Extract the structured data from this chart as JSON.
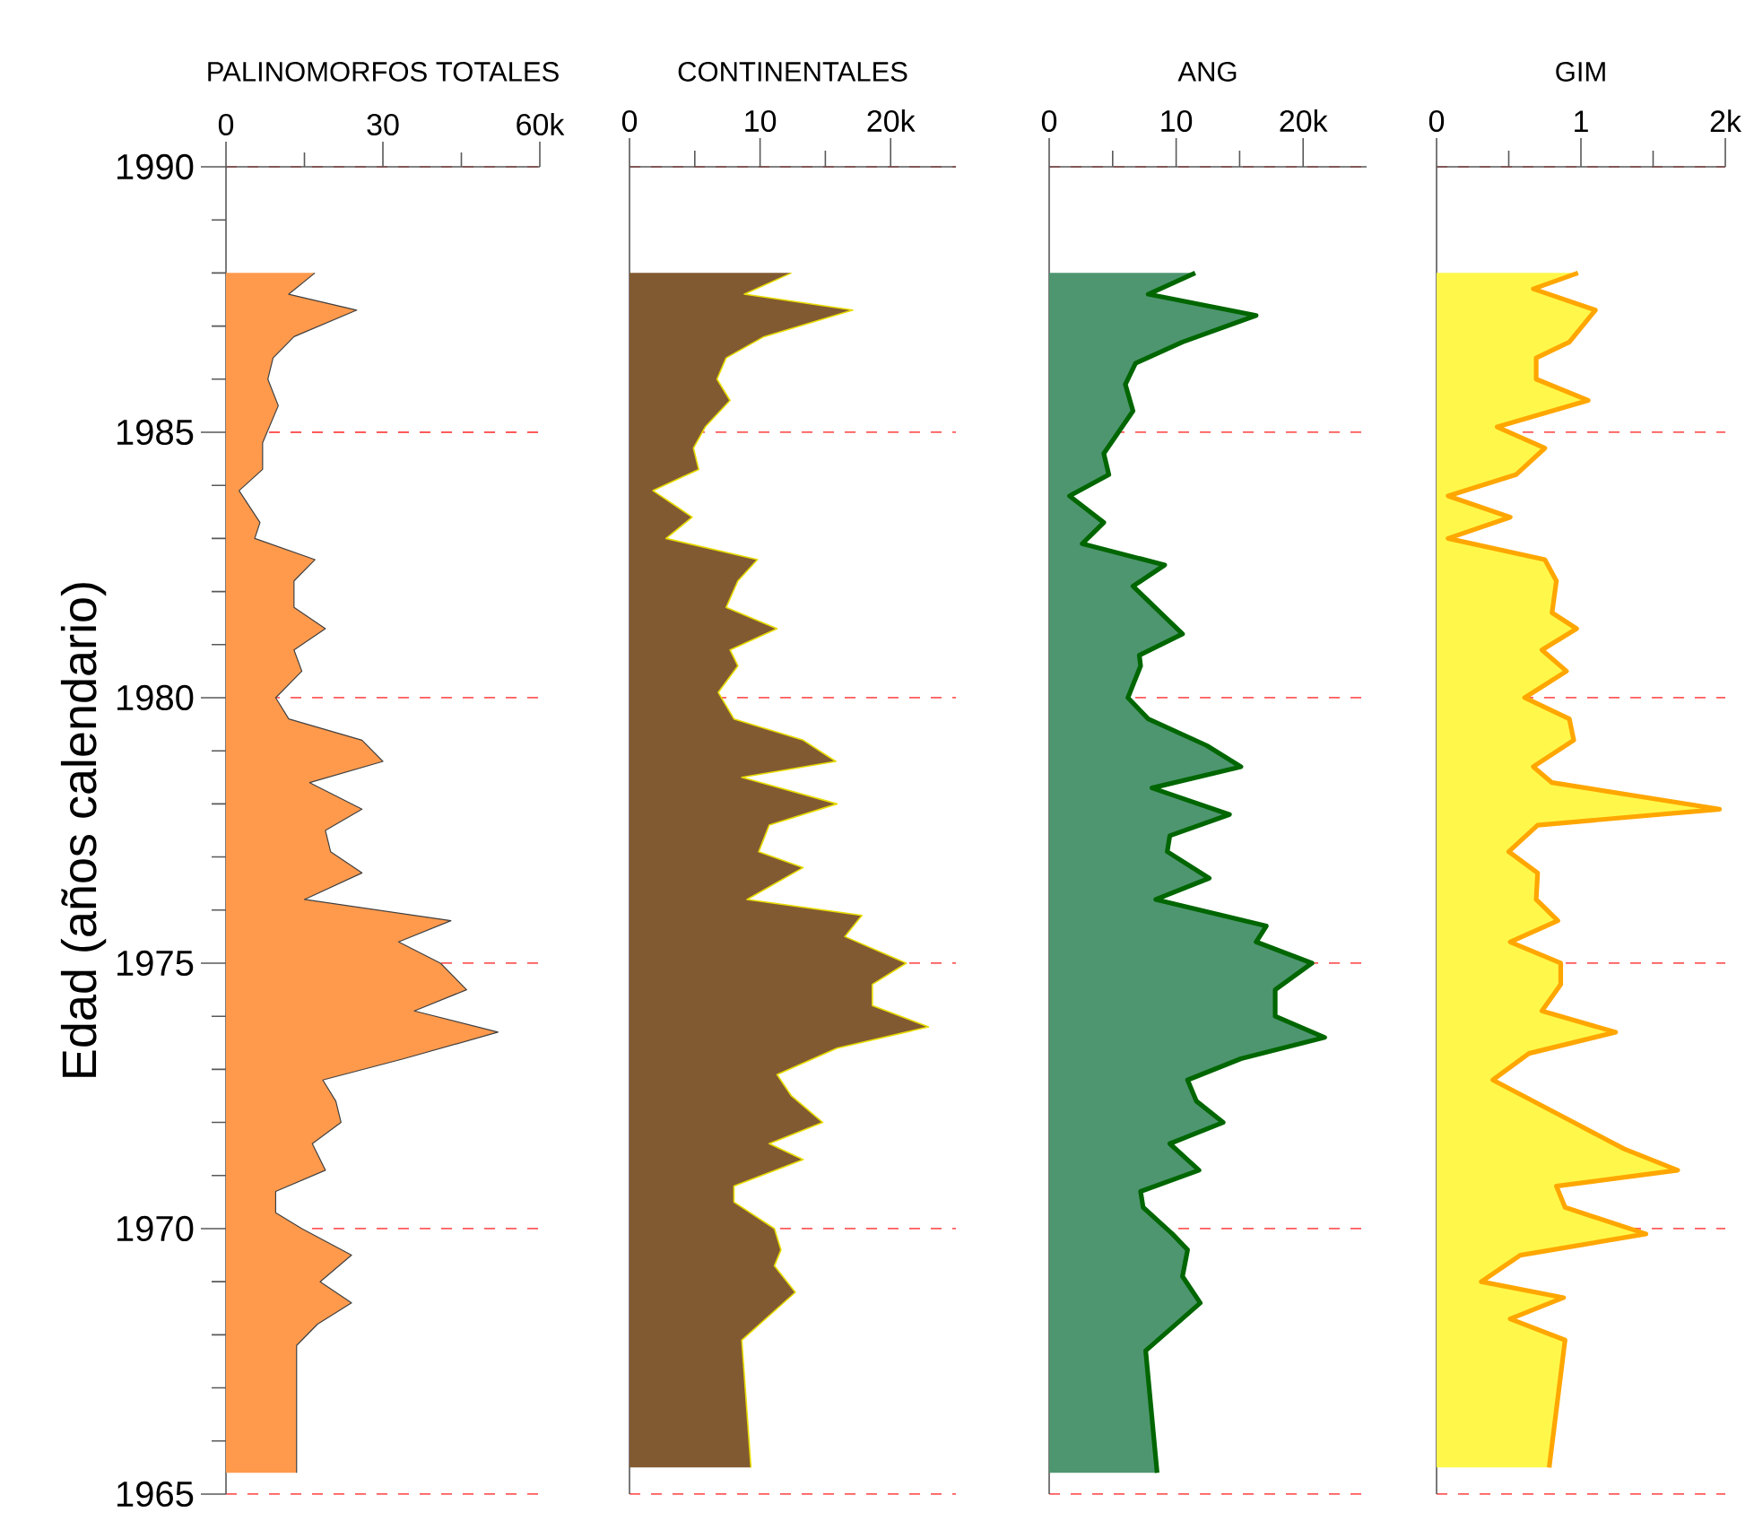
{
  "chart_data": [
    {
      "type": "area",
      "orientation": "horizontal",
      "title": "PALINOMORFOS TOTALES",
      "ylabel": "Edad (años calendario)",
      "color": "#ff9a4d",
      "grid": "y",
      "x": [
        1988.0,
        1987.6,
        1987.3,
        1986.8,
        1986.4,
        1986.0,
        1985.5,
        1984.8,
        1984.3,
        1983.9,
        1983.3,
        1983.0,
        1982.6,
        1982.2,
        1981.7,
        1981.3,
        1980.9,
        1980.5,
        1980.0,
        1979.6,
        1979.2,
        1978.8,
        1978.4,
        1977.9,
        1977.5,
        1977.1,
        1976.7,
        1976.2,
        1975.8,
        1975.4,
        1975.0,
        1974.5,
        1974.1,
        1973.7,
        1973.2,
        1972.8,
        1972.4,
        1972.0,
        1971.6,
        1971.1,
        1970.7,
        1970.3,
        1970.0,
        1969.5,
        1969.0,
        1968.6,
        1968.2,
        1967.8,
        1965.4
      ],
      "values": [
        17,
        12,
        25,
        13,
        9,
        8,
        10,
        7,
        7,
        2.5,
        6.5,
        5.5,
        17,
        13,
        13,
        19,
        13,
        14.5,
        9.5,
        12,
        26,
        30,
        16,
        26,
        19,
        20,
        26,
        15,
        43,
        33,
        41,
        46,
        36,
        52,
        34,
        18.5,
        21,
        22,
        16.5,
        19,
        9.5,
        9.5,
        14.5,
        24,
        18,
        24,
        17.5,
        13.5,
        13.5
      ],
      "xlim": [
        0,
        60
      ],
      "xticks": [
        0,
        30,
        {
          "value": 60,
          "label": "60k"
        }
      ],
      "ylim": [
        1965,
        1990
      ],
      "yticks": [
        1965,
        1970,
        1975,
        1980,
        1985,
        1990
      ]
    },
    {
      "type": "area",
      "orientation": "horizontal",
      "title": "CONTINENTALES",
      "color": "#825a32",
      "grid": "y",
      "tick_labels": "x",
      "x": [
        1988.0,
        1987.6,
        1987.3,
        1986.8,
        1986.4,
        1986.0,
        1985.6,
        1985.1,
        1984.7,
        1984.3,
        1983.9,
        1983.4,
        1983.0,
        1982.6,
        1982.2,
        1981.7,
        1981.3,
        1980.9,
        1980.6,
        1980.1,
        1979.6,
        1979.2,
        1978.8,
        1978.5,
        1978.0,
        1977.6,
        1977.1,
        1976.8,
        1976.2,
        1975.9,
        1975.5,
        1975.0,
        1974.6,
        1974.2,
        1973.8,
        1973.4,
        1972.9,
        1972.5,
        1972.0,
        1971.6,
        1971.3,
        1970.8,
        1970.5,
        1970.0,
        1969.6,
        1969.3,
        1968.8,
        1967.9,
        1965.5
      ],
      "values": [
        12.4,
        8.8,
        17.1,
        10.3,
        7.4,
        6.7,
        7.7,
        5.8,
        4.9,
        5.3,
        1.8,
        4.8,
        2.8,
        9.8,
        8.3,
        7.4,
        11.3,
        7.7,
        8.3,
        6.8,
        8.0,
        13.3,
        15.8,
        8.6,
        15.9,
        10.7,
        9.9,
        13.3,
        9.0,
        17.8,
        16.5,
        21.2,
        18.6,
        18.6,
        22.9,
        15.9,
        11.3,
        12.4,
        14.8,
        10.7,
        13.3,
        8.0,
        8.0,
        11.1,
        11.6,
        11.1,
        12.7,
        8.6,
        9.3
      ],
      "xlim": [
        0,
        25
      ],
      "xticks": [
        0,
        10,
        {
          "value": 20,
          "label": "20k"
        }
      ],
      "ylim": [
        1965,
        1990
      ],
      "yticks": [
        1965,
        1970,
        1975,
        1980,
        1985,
        1990
      ]
    },
    {
      "type": "area",
      "orientation": "horizontal",
      "title": "ANG",
      "color": "#4e9670",
      "grid": "y",
      "tick_labels": "x",
      "x": [
        1988.0,
        1987.6,
        1987.2,
        1986.7,
        1986.3,
        1985.9,
        1985.4,
        1984.6,
        1984.2,
        1983.8,
        1983.3,
        1982.9,
        1982.5,
        1982.1,
        1981.2,
        1980.8,
        1980.6,
        1980.0,
        1979.6,
        1979.1,
        1978.7,
        1978.3,
        1977.8,
        1977.4,
        1977.1,
        1976.6,
        1976.2,
        1975.7,
        1975.4,
        1975.0,
        1974.5,
        1974.0,
        1973.6,
        1973.2,
        1972.8,
        1972.4,
        1972.0,
        1971.6,
        1971.1,
        1970.7,
        1970.4,
        1969.9,
        1969.6,
        1969.1,
        1968.6,
        1967.7,
        1965.4
      ],
      "values": [
        11.5,
        7.8,
        16.3,
        10.5,
        6.8,
        6.0,
        6.6,
        4.3,
        4.7,
        1.6,
        4.3,
        2.6,
        9.1,
        6.6,
        10.5,
        7.1,
        7.2,
        6.2,
        7.8,
        12.4,
        15.1,
        8.1,
        14.2,
        9.5,
        9.3,
        12.6,
        8.4,
        17.1,
        16.3,
        20.7,
        17.8,
        17.8,
        21.7,
        15.1,
        10.9,
        11.6,
        13.7,
        9.5,
        11.8,
        7.2,
        7.4,
        9.7,
        10.9,
        10.5,
        11.9,
        7.6,
        8.5
      ],
      "xlim": [
        0,
        25
      ],
      "xticks": [
        0,
        10,
        {
          "value": 20,
          "label": "20k"
        }
      ],
      "ylim": [
        1965,
        1990
      ],
      "yticks": [
        1965,
        1970,
        1975,
        1980,
        1985,
        1990
      ]
    },
    {
      "type": "area",
      "orientation": "horizontal",
      "title": "GIM",
      "color": "#fff84a",
      "grid": "y",
      "tick_labels": "x",
      "x": [
        1988.0,
        1987.7,
        1987.3,
        1986.7,
        1986.4,
        1986.0,
        1985.6,
        1985.1,
        1984.7,
        1984.2,
        1983.8,
        1983.4,
        1983.0,
        1982.6,
        1982.2,
        1981.6,
        1981.3,
        1980.9,
        1980.5,
        1980.0,
        1979.6,
        1979.2,
        1978.7,
        1978.4,
        1977.9,
        1977.6,
        1977.1,
        1976.7,
        1976.2,
        1975.8,
        1975.4,
        1975.0,
        1974.6,
        1974.1,
        1973.7,
        1973.3,
        1972.8,
        1972.0,
        1971.5,
        1971.1,
        1970.8,
        1970.4,
        1969.9,
        1969.5,
        1969.0,
        1968.7,
        1968.3,
        1967.9,
        1965.5
      ],
      "values": [
        0.98,
        0.67,
        1.1,
        0.92,
        0.69,
        0.69,
        1.05,
        0.42,
        0.75,
        0.55,
        0.08,
        0.51,
        0.08,
        0.75,
        0.83,
        0.8,
        0.97,
        0.73,
        0.9,
        0.61,
        0.92,
        0.95,
        0.67,
        0.8,
        1.96,
        0.7,
        0.5,
        0.7,
        0.69,
        0.84,
        0.51,
        0.86,
        0.86,
        0.73,
        1.24,
        0.64,
        0.39,
        0.95,
        1.3,
        1.67,
        0.83,
        0.89,
        1.45,
        0.58,
        0.31,
        0.88,
        0.51,
        0.89,
        0.78
      ],
      "xlim": [
        0,
        2
      ],
      "xticks": [
        0,
        1,
        {
          "value": 2,
          "label": "2k"
        }
      ],
      "ylim": [
        1965,
        1990
      ],
      "yticks": [
        1965,
        1970,
        1975,
        1980,
        1985,
        1990
      ]
    }
  ]
}
